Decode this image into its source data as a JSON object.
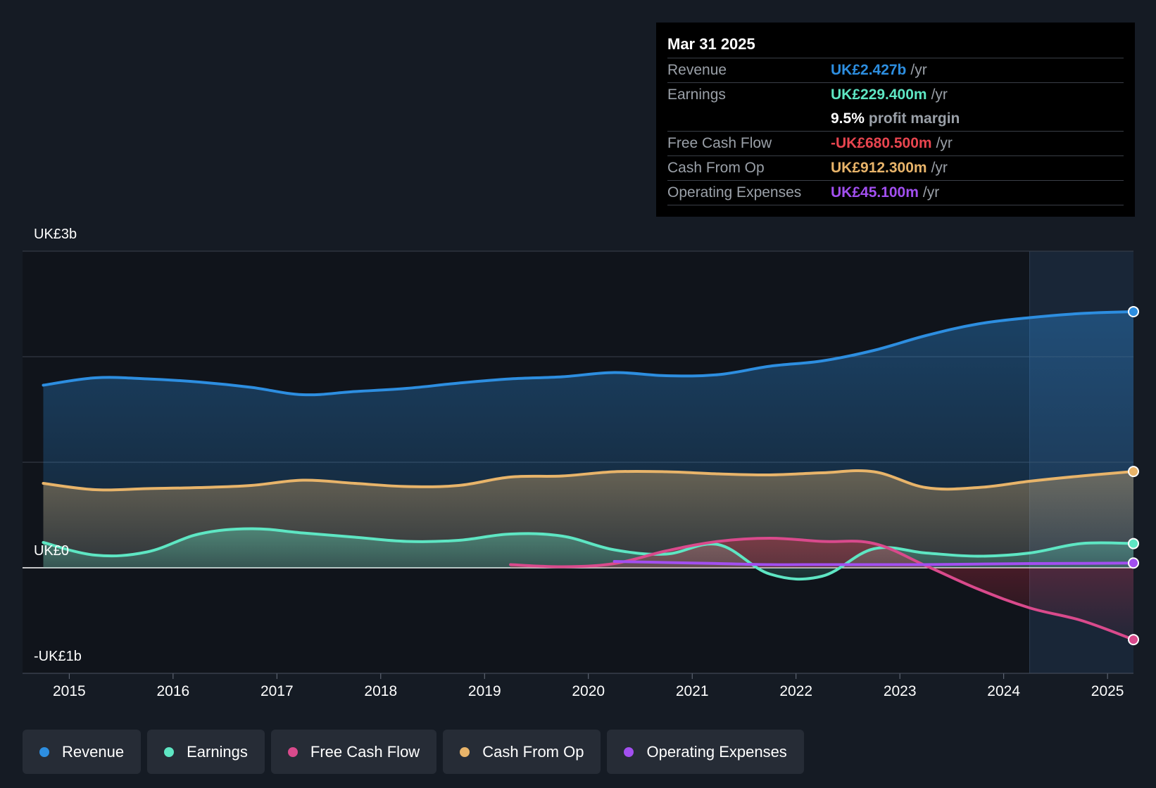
{
  "chart_data": {
    "type": "area",
    "units": "UK£ billions",
    "y_labels": {
      "top": "UK£3b",
      "zero": "UK£0",
      "bottom": "-UK£1b"
    },
    "ylim": [
      -1,
      3
    ],
    "xlim": [
      2014.55,
      2025.25
    ],
    "x_ticks": [
      "2015",
      "2016",
      "2017",
      "2018",
      "2019",
      "2020",
      "2021",
      "2022",
      "2023",
      "2024",
      "2025"
    ],
    "forecast_shading_start": 2024.25,
    "series": [
      {
        "name": "Revenue",
        "color": "#2d8ee0",
        "points": [
          [
            2014.75,
            1.73
          ],
          [
            2015.25,
            1.8
          ],
          [
            2015.75,
            1.79
          ],
          [
            2016.25,
            1.76
          ],
          [
            2016.75,
            1.71
          ],
          [
            2017.25,
            1.64
          ],
          [
            2017.75,
            1.67
          ],
          [
            2018.25,
            1.7
          ],
          [
            2018.75,
            1.75
          ],
          [
            2019.25,
            1.79
          ],
          [
            2019.75,
            1.81
          ],
          [
            2020.25,
            1.85
          ],
          [
            2020.75,
            1.82
          ],
          [
            2021.25,
            1.83
          ],
          [
            2021.75,
            1.91
          ],
          [
            2022.25,
            1.96
          ],
          [
            2022.75,
            2.06
          ],
          [
            2023.25,
            2.2
          ],
          [
            2023.75,
            2.31
          ],
          [
            2024.25,
            2.37
          ],
          [
            2024.75,
            2.41
          ],
          [
            2025.25,
            2.427
          ]
        ]
      },
      {
        "name": "Earnings",
        "color": "#5ee6c3",
        "points": [
          [
            2014.75,
            0.24
          ],
          [
            2015.25,
            0.12
          ],
          [
            2015.75,
            0.15
          ],
          [
            2016.25,
            0.32
          ],
          [
            2016.75,
            0.37
          ],
          [
            2017.25,
            0.33
          ],
          [
            2017.75,
            0.29
          ],
          [
            2018.25,
            0.25
          ],
          [
            2018.75,
            0.26
          ],
          [
            2019.25,
            0.32
          ],
          [
            2019.75,
            0.3
          ],
          [
            2020.25,
            0.17
          ],
          [
            2020.75,
            0.13
          ],
          [
            2021.25,
            0.22
          ],
          [
            2021.75,
            -0.06
          ],
          [
            2022.25,
            -0.08
          ],
          [
            2022.75,
            0.18
          ],
          [
            2023.25,
            0.14
          ],
          [
            2023.75,
            0.11
          ],
          [
            2024.25,
            0.14
          ],
          [
            2024.75,
            0.23
          ],
          [
            2025.25,
            0.2294
          ]
        ]
      },
      {
        "name": "Free Cash Flow",
        "color": "#d94a8c",
        "points": [
          [
            2019.25,
            0.03
          ],
          [
            2019.75,
            0.01
          ],
          [
            2020.25,
            0.04
          ],
          [
            2020.75,
            0.16
          ],
          [
            2021.25,
            0.25
          ],
          [
            2021.75,
            0.28
          ],
          [
            2022.25,
            0.25
          ],
          [
            2022.75,
            0.23
          ],
          [
            2023.25,
            0.02
          ],
          [
            2023.75,
            -0.2
          ],
          [
            2024.25,
            -0.38
          ],
          [
            2024.75,
            -0.5
          ],
          [
            2025.25,
            -0.6805
          ]
        ]
      },
      {
        "name": "Cash From Op",
        "color": "#e8b46a",
        "points": [
          [
            2014.75,
            0.8
          ],
          [
            2015.25,
            0.74
          ],
          [
            2015.75,
            0.75
          ],
          [
            2016.25,
            0.76
          ],
          [
            2016.75,
            0.78
          ],
          [
            2017.25,
            0.83
          ],
          [
            2017.75,
            0.8
          ],
          [
            2018.25,
            0.77
          ],
          [
            2018.75,
            0.78
          ],
          [
            2019.25,
            0.86
          ],
          [
            2019.75,
            0.87
          ],
          [
            2020.25,
            0.91
          ],
          [
            2020.75,
            0.91
          ],
          [
            2021.25,
            0.89
          ],
          [
            2021.75,
            0.88
          ],
          [
            2022.25,
            0.9
          ],
          [
            2022.75,
            0.91
          ],
          [
            2023.25,
            0.76
          ],
          [
            2023.75,
            0.76
          ],
          [
            2024.25,
            0.82
          ],
          [
            2024.75,
            0.87
          ],
          [
            2025.25,
            0.9123
          ]
        ]
      },
      {
        "name": "Operating Expenses",
        "color": "#a24ff0",
        "points": [
          [
            2020.25,
            0.06
          ],
          [
            2020.75,
            0.05
          ],
          [
            2021.25,
            0.04
          ],
          [
            2021.75,
            0.03
          ],
          [
            2022.25,
            0.03
          ],
          [
            2022.75,
            0.03
          ],
          [
            2023.25,
            0.03
          ],
          [
            2023.75,
            0.035
          ],
          [
            2024.25,
            0.04
          ],
          [
            2024.75,
            0.042
          ],
          [
            2025.25,
            0.0451
          ]
        ]
      }
    ]
  },
  "tooltip": {
    "date": "Mar 31 2025",
    "rows": [
      {
        "label": "Revenue",
        "value": "UK£2.427b",
        "unit": "/yr",
        "color": "#2d8ee0"
      },
      {
        "label": "Earnings",
        "value": "UK£229.400m",
        "unit": "/yr",
        "color": "#5ee6c3"
      },
      {
        "label": "",
        "value": "9.5%",
        "unit": "profit margin",
        "color": "#ffffff"
      },
      {
        "label": "Free Cash Flow",
        "value": "-UK£680.500m",
        "unit": "/yr",
        "color": "#e8454f"
      },
      {
        "label": "Cash From Op",
        "value": "UK£912.300m",
        "unit": "/yr",
        "color": "#e8b46a"
      },
      {
        "label": "Operating Expenses",
        "value": "UK£45.100m",
        "unit": "/yr",
        "color": "#a24ff0"
      }
    ]
  },
  "legend": [
    {
      "label": "Revenue",
      "color": "#2d8ee0"
    },
    {
      "label": "Earnings",
      "color": "#5ee6c3"
    },
    {
      "label": "Free Cash Flow",
      "color": "#d94a8c"
    },
    {
      "label": "Cash From Op",
      "color": "#e8b46a"
    },
    {
      "label": "Operating Expenses",
      "color": "#a24ff0"
    }
  ]
}
